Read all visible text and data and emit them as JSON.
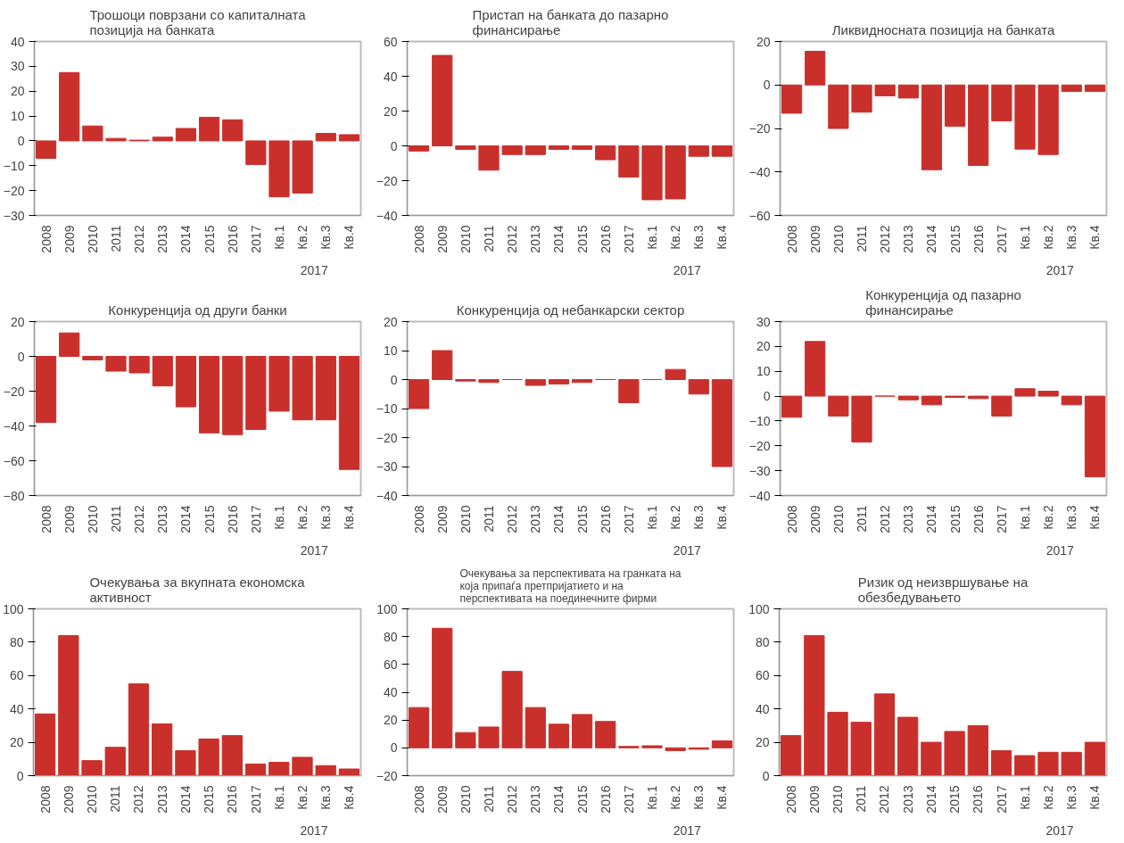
{
  "chart_data": [
    {
      "type": "bar",
      "title": "Трошоци поврзани со капиталната позиција на банката",
      "categories": [
        "2008",
        "2009",
        "2010",
        "2011",
        "2012",
        "2013",
        "2014",
        "2015",
        "2016",
        "2017",
        "Кв.1",
        "Кв.2",
        "Кв.3",
        "Кв.4"
      ],
      "values": [
        -7,
        27.5,
        6,
        1,
        0.3,
        1.5,
        5,
        9.5,
        8.5,
        -9.5,
        -22.5,
        -21,
        3,
        2.5
      ],
      "color": "#c9302c",
      "ylim": [
        -30,
        40
      ],
      "yticks": [
        -30,
        -20,
        -10,
        0,
        10,
        20,
        30,
        40
      ],
      "annotations": [
        "2017"
      ]
    },
    {
      "type": "bar",
      "title": "Пристап на банката до пазарно финансирање",
      "categories": [
        "2008",
        "2009",
        "2010",
        "2011",
        "2012",
        "2013",
        "2014",
        "2015",
        "2016",
        "2017",
        "Кв.1",
        "Кв.2",
        "Кв.3",
        "Кв.4"
      ],
      "values": [
        -3,
        52,
        -2,
        -14,
        -5,
        -5,
        -2,
        -2,
        -8,
        -18,
        -31,
        -30.5,
        -6,
        -6
      ],
      "color": "#c9302c",
      "ylim": [
        -40,
        60
      ],
      "yticks": [
        -40,
        -20,
        0,
        20,
        40,
        60
      ],
      "annotations": [
        "2017"
      ]
    },
    {
      "type": "bar",
      "title": "Ликвидносната позиција на банката",
      "categories": [
        "2008",
        "2009",
        "2010",
        "2011",
        "2012",
        "2013",
        "2014",
        "2015",
        "2016",
        "2017",
        "Кв.1",
        "Кв.2",
        "Кв.3",
        "Кв.4"
      ],
      "values": [
        -13,
        15.5,
        -20,
        -12.5,
        -5,
        -6,
        -39,
        -19,
        -37,
        -16.5,
        -29.5,
        -32,
        -3,
        -3
      ],
      "color": "#c9302c",
      "ylim": [
        -60,
        20
      ],
      "yticks": [
        -60,
        -40,
        -20,
        0,
        20
      ],
      "annotations": [
        "2017"
      ]
    },
    {
      "type": "bar",
      "title": "Конкуренција од други банки",
      "categories": [
        "2008",
        "2009",
        "2010",
        "2011",
        "2012",
        "2013",
        "2014",
        "2015",
        "2016",
        "2017",
        "Кв.1",
        "Кв.2",
        "Кв.3",
        "Кв.4"
      ],
      "values": [
        -38,
        13.5,
        -2,
        -8.5,
        -9.5,
        -17,
        -29,
        -44,
        -45,
        -42,
        -31.5,
        -36.5,
        -36.5,
        -65
      ],
      "color": "#c9302c",
      "ylim": [
        -80,
        20
      ],
      "yticks": [
        -80,
        -60,
        -40,
        -20,
        0,
        20
      ],
      "annotations": [
        "2017"
      ]
    },
    {
      "type": "bar",
      "title": "Конкуренција од небанкарски сектор",
      "categories": [
        "2008",
        "2009",
        "2010",
        "2011",
        "2012",
        "2013",
        "2014",
        "2015",
        "2016",
        "2017",
        "Кв.1",
        "Кв.2",
        "Кв.3",
        "Кв.4"
      ],
      "values": [
        -10,
        10,
        -0.5,
        -1,
        0,
        -2,
        -1.5,
        -1,
        0,
        -8,
        0,
        3.5,
        -5,
        -30
      ],
      "color": "#c9302c",
      "ylim": [
        -40,
        20
      ],
      "yticks": [
        -40,
        -30,
        -20,
        -10,
        0,
        10,
        20
      ],
      "annotations": [
        "2017"
      ]
    },
    {
      "type": "bar",
      "title": "Конкуренција од пазарно финансирање",
      "categories": [
        "2008",
        "2009",
        "2010",
        "2011",
        "2012",
        "2013",
        "2014",
        "2015",
        "2016",
        "2017",
        "Кв.1",
        "Кв.2",
        "Кв.3",
        "Кв.4"
      ],
      "values": [
        -8.5,
        22,
        -8,
        -18.5,
        0,
        -1.5,
        -3.5,
        -0.5,
        -1,
        -8,
        3,
        2,
        -3.5,
        -32.5
      ],
      "color": "#c9302c",
      "ylim": [
        -40,
        30
      ],
      "yticks": [
        -40,
        -30,
        -20,
        -10,
        0,
        10,
        20,
        30
      ],
      "annotations": [
        "2017"
      ]
    },
    {
      "type": "bar",
      "title": "Очекувања за вкупната економска активност",
      "categories": [
        "2008",
        "2009",
        "2010",
        "2011",
        "2012",
        "2013",
        "2014",
        "2015",
        "2016",
        "2017",
        "Кв.1",
        "Кв.2",
        "Кв.3",
        "Кв.4"
      ],
      "values": [
        37,
        84,
        9,
        17,
        55,
        31,
        15,
        22,
        24,
        7,
        8,
        11,
        6,
        4
      ],
      "color": "#c9302c",
      "ylim": [
        0,
        100
      ],
      "yticks": [
        0,
        20,
        40,
        60,
        80,
        100
      ],
      "annotations": [
        "2017"
      ]
    },
    {
      "type": "bar",
      "title": "Очекувања за перспективата на гранката на која припаѓа претпријатието и на перспективата на поединечните фирми",
      "categories": [
        "2008",
        "2009",
        "2010",
        "2011",
        "2012",
        "2013",
        "2014",
        "2015",
        "2016",
        "2017",
        "Кв.1",
        "Кв.2",
        "Кв.3",
        "Кв.4"
      ],
      "values": [
        29,
        86,
        11,
        15,
        55,
        29,
        17,
        24,
        19,
        1,
        1.5,
        -2,
        -1,
        5
      ],
      "color": "#c9302c",
      "ylim": [
        -20,
        100
      ],
      "yticks": [
        -20,
        0,
        20,
        40,
        60,
        80,
        100
      ],
      "annotations": [
        "2017"
      ]
    },
    {
      "type": "bar",
      "title": "Ризик од неизвршување на обезбедувањето",
      "categories": [
        "2008",
        "2009",
        "2010",
        "2011",
        "2012",
        "2013",
        "2014",
        "2015",
        "2016",
        "2017",
        "Кв.1",
        "Кв.2",
        "Кв.3",
        "Кв.4"
      ],
      "values": [
        24,
        84,
        38,
        32,
        49,
        35,
        20,
        26.5,
        30,
        15,
        12,
        14,
        14,
        20
      ],
      "color": "#c9302c",
      "ylim": [
        0,
        100
      ],
      "yticks": [
        0,
        20,
        40,
        60,
        80,
        100
      ],
      "annotations": [
        "2017"
      ]
    }
  ]
}
